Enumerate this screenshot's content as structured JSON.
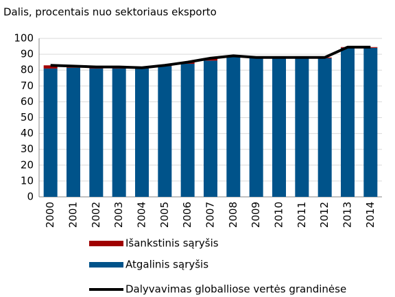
{
  "chart_data": {
    "type": "bar",
    "stacked": true,
    "title": "Dalis, procentais nuo sektoriaus eksporto",
    "categories": [
      "2000",
      "2001",
      "2002",
      "2003",
      "2004",
      "2005",
      "2006",
      "2007",
      "2008",
      "2009",
      "2010",
      "2011",
      "2012",
      "2013",
      "2014"
    ],
    "series": [
      {
        "name": "Atgalinis sąryšis",
        "type": "bar",
        "color": "#00538a",
        "values": [
          81,
          81.5,
          81,
          81,
          81,
          82.5,
          84,
          86,
          88.5,
          87.5,
          87.5,
          87.5,
          87.5,
          94,
          94
        ]
      },
      {
        "name": "Išankstinis sąryšis",
        "type": "bar",
        "color": "#a00000",
        "values": [
          2,
          1,
          1,
          1,
          0.5,
          0.5,
          1,
          1.5,
          0.5,
          0.5,
          0.5,
          0.5,
          0.5,
          0.5,
          0.5
        ]
      },
      {
        "name": "Dalyvavimas globalliose vertės grandinėse",
        "type": "line",
        "color": "#000000",
        "values": [
          83,
          82.5,
          82,
          82,
          81.5,
          83,
          85,
          87.5,
          89,
          88,
          88,
          88,
          88,
          94.5,
          94.5
        ]
      }
    ],
    "ylim": [
      0,
      100
    ],
    "yticks": [
      0,
      10,
      20,
      30,
      40,
      50,
      60,
      70,
      80,
      90,
      100
    ],
    "grid": true
  }
}
